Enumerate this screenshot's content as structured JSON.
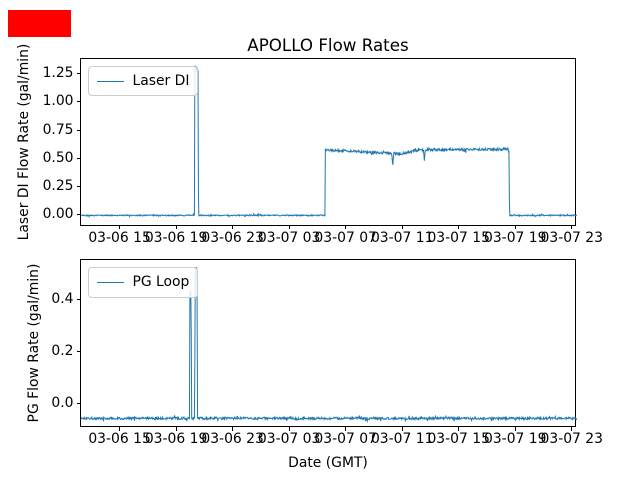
{
  "figure_title": "APOLLO Flow Rates",
  "annotation_box": {
    "color": "#ff0000"
  },
  "line_color": "#1f77b4",
  "chart_data": [
    {
      "type": "line",
      "legend": "Laser DI",
      "ylabel": "Laser DI Flow Rate (gal/min)",
      "xlabel": "",
      "x_unit": "hours since 03-06 00:00 (GMT)",
      "xlim": [
        12.2,
        47.3
      ],
      "ylim": [
        -0.097,
        1.392
      ],
      "grid": false,
      "legend_position": "upper-left",
      "yticks": {
        "values": [
          0.0,
          0.25,
          0.5,
          0.75,
          1.0,
          1.25
        ],
        "labels": [
          "0.00",
          "0.25",
          "0.50",
          "0.75",
          "1.00",
          "1.25"
        ]
      },
      "xticks": {
        "values": [
          15,
          19,
          23,
          27,
          31,
          35,
          39,
          43,
          47
        ],
        "labels": [
          "03-06 15",
          "03-06 19",
          "03-06 23",
          "03-07 03",
          "03-07 07",
          "03-07 11",
          "03-07 15",
          "03-07 19",
          "03-07 23"
        ]
      },
      "summary": "Baseline ~0.0 gal/min; narrow spike to ~1.31 at 03-06 ~20:20; ~0.55-0.59 plateau from 03-07 ~05:30 to ~18:30 with brief dips to ~0.44 (~10:15) and ~0.49 (~12:30); back to ~0.0 after.",
      "series": {
        "color": "#1f77b4",
        "keyline": [
          [
            12.2,
            0.006
          ],
          [
            29.46,
            0.006
          ],
          [
            29.48,
            0.585
          ],
          [
            31.0,
            0.578
          ],
          [
            33.0,
            0.563
          ],
          [
            34.9,
            0.553
          ],
          [
            35.8,
            0.578
          ],
          [
            36.6,
            0.588
          ],
          [
            40.0,
            0.59
          ],
          [
            42.5,
            0.592
          ],
          [
            42.52,
            0.006
          ],
          [
            47.3,
            0.006
          ]
        ],
        "noise_default": 0.005,
        "noise_regions": [
          [
            12.2,
            29.46,
            0.005
          ],
          [
            29.48,
            42.5,
            0.011
          ],
          [
            42.52,
            47.3,
            0.005
          ]
        ],
        "events": [
          {
            "t": 20.37,
            "width": 0.29,
            "value": 1.3,
            "flat": true,
            "wiggle": 0.03
          },
          {
            "t": 34.26,
            "width": 0.14,
            "value": 0.44
          },
          {
            "t": 36.5,
            "width": 0.12,
            "value": 0.487
          }
        ]
      }
    },
    {
      "type": "line",
      "legend": "PG Loop",
      "ylabel": "PG Flow Rate (gal/min)",
      "xlabel": "Date (GMT)",
      "x_unit": "hours since 03-06 00:00 (GMT)",
      "xlim": [
        12.2,
        47.3
      ],
      "ylim": [
        -0.089,
        0.553
      ],
      "grid": false,
      "legend_position": "upper-left",
      "yticks": {
        "values": [
          0.0,
          0.2,
          0.4
        ],
        "labels": [
          "0.0",
          "0.2",
          "0.4"
        ]
      },
      "xticks": {
        "values": [
          15,
          19,
          23,
          27,
          31,
          35,
          39,
          43,
          47
        ],
        "labels": [
          "03-06 15",
          "03-06 19",
          "03-06 23",
          "03-07 03",
          "03-07 07",
          "03-07 11",
          "03-07 15",
          "03-07 19",
          "03-07 23"
        ]
      },
      "summary": "Flat baseline ~-0.05 gal/min; two narrow spikes at 03-06 ~19:55 (to ~0.43) and ~20:20 (to ~0.52).",
      "series": {
        "color": "#1f77b4",
        "keyline": [
          [
            12.2,
            -0.052
          ],
          [
            47.3,
            -0.052
          ]
        ],
        "noise_default": 0.0045,
        "noise_regions": [],
        "events": [
          {
            "t": 19.95,
            "width": 0.12,
            "value": 0.434,
            "flat": true,
            "wiggle": 0.0
          },
          {
            "t": 20.34,
            "width": 0.18,
            "value": 0.524,
            "flat": true,
            "wiggle": 0.0
          }
        ]
      }
    }
  ]
}
